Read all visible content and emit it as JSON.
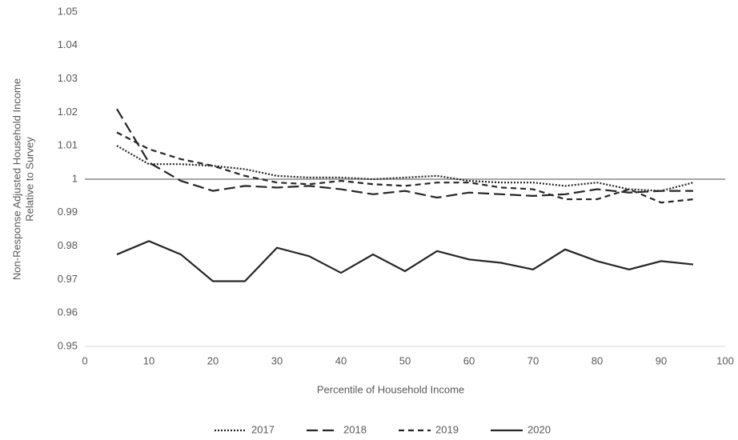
{
  "chart_data": {
    "type": "line",
    "xlabel": "Percentile of Household Income",
    "ylabel": [
      "Non-Response Adjusted Household Income",
      "Relative to Survey"
    ],
    "x": [
      5,
      10,
      15,
      20,
      25,
      30,
      35,
      40,
      45,
      50,
      55,
      60,
      65,
      70,
      75,
      80,
      85,
      90,
      95
    ],
    "series": [
      {
        "name": "2017",
        "color": "#262626",
        "dash": "2 2",
        "values": [
          1.01,
          1.0045,
          1.0045,
          1.004,
          1.003,
          1.001,
          1.0005,
          1.0005,
          1.0,
          1.0005,
          1.001,
          0.9995,
          0.999,
          0.999,
          0.998,
          0.999,
          0.997,
          0.9965,
          0.999
        ]
      },
      {
        "name": "2018",
        "color": "#262626",
        "dash": "14 6",
        "values": [
          1.021,
          1.005,
          0.9995,
          0.9965,
          0.998,
          0.9975,
          0.998,
          0.997,
          0.9955,
          0.9965,
          0.9945,
          0.996,
          0.9955,
          0.995,
          0.9955,
          0.997,
          0.996,
          0.9965,
          0.9965
        ]
      },
      {
        "name": "2019",
        "color": "#262626",
        "dash": "7 5",
        "values": [
          1.014,
          1.009,
          1.006,
          1.004,
          1.001,
          0.999,
          0.9985,
          0.9995,
          0.9985,
          0.998,
          0.999,
          0.999,
          0.9975,
          0.997,
          0.994,
          0.994,
          0.997,
          0.993,
          0.994
        ]
      },
      {
        "name": "2020",
        "color": "#262626",
        "dash": "none",
        "values": [
          0.9775,
          0.9815,
          0.9775,
          0.9695,
          0.9695,
          0.9795,
          0.977,
          0.972,
          0.9775,
          0.9725,
          0.9785,
          0.976,
          0.975,
          0.973,
          0.979,
          0.9755,
          0.973,
          0.9755,
          0.9745
        ]
      }
    ],
    "xlim": [
      0,
      100
    ],
    "xticks": [
      0,
      10,
      20,
      30,
      40,
      50,
      60,
      70,
      80,
      90,
      100
    ],
    "ylim": [
      0.95,
      1.05
    ],
    "yticks": [
      0.95,
      0.96,
      0.97,
      0.98,
      0.99,
      1,
      1.01,
      1.02,
      1.03,
      1.04,
      1.05
    ],
    "reference_line": 1,
    "legend": "bottom"
  }
}
